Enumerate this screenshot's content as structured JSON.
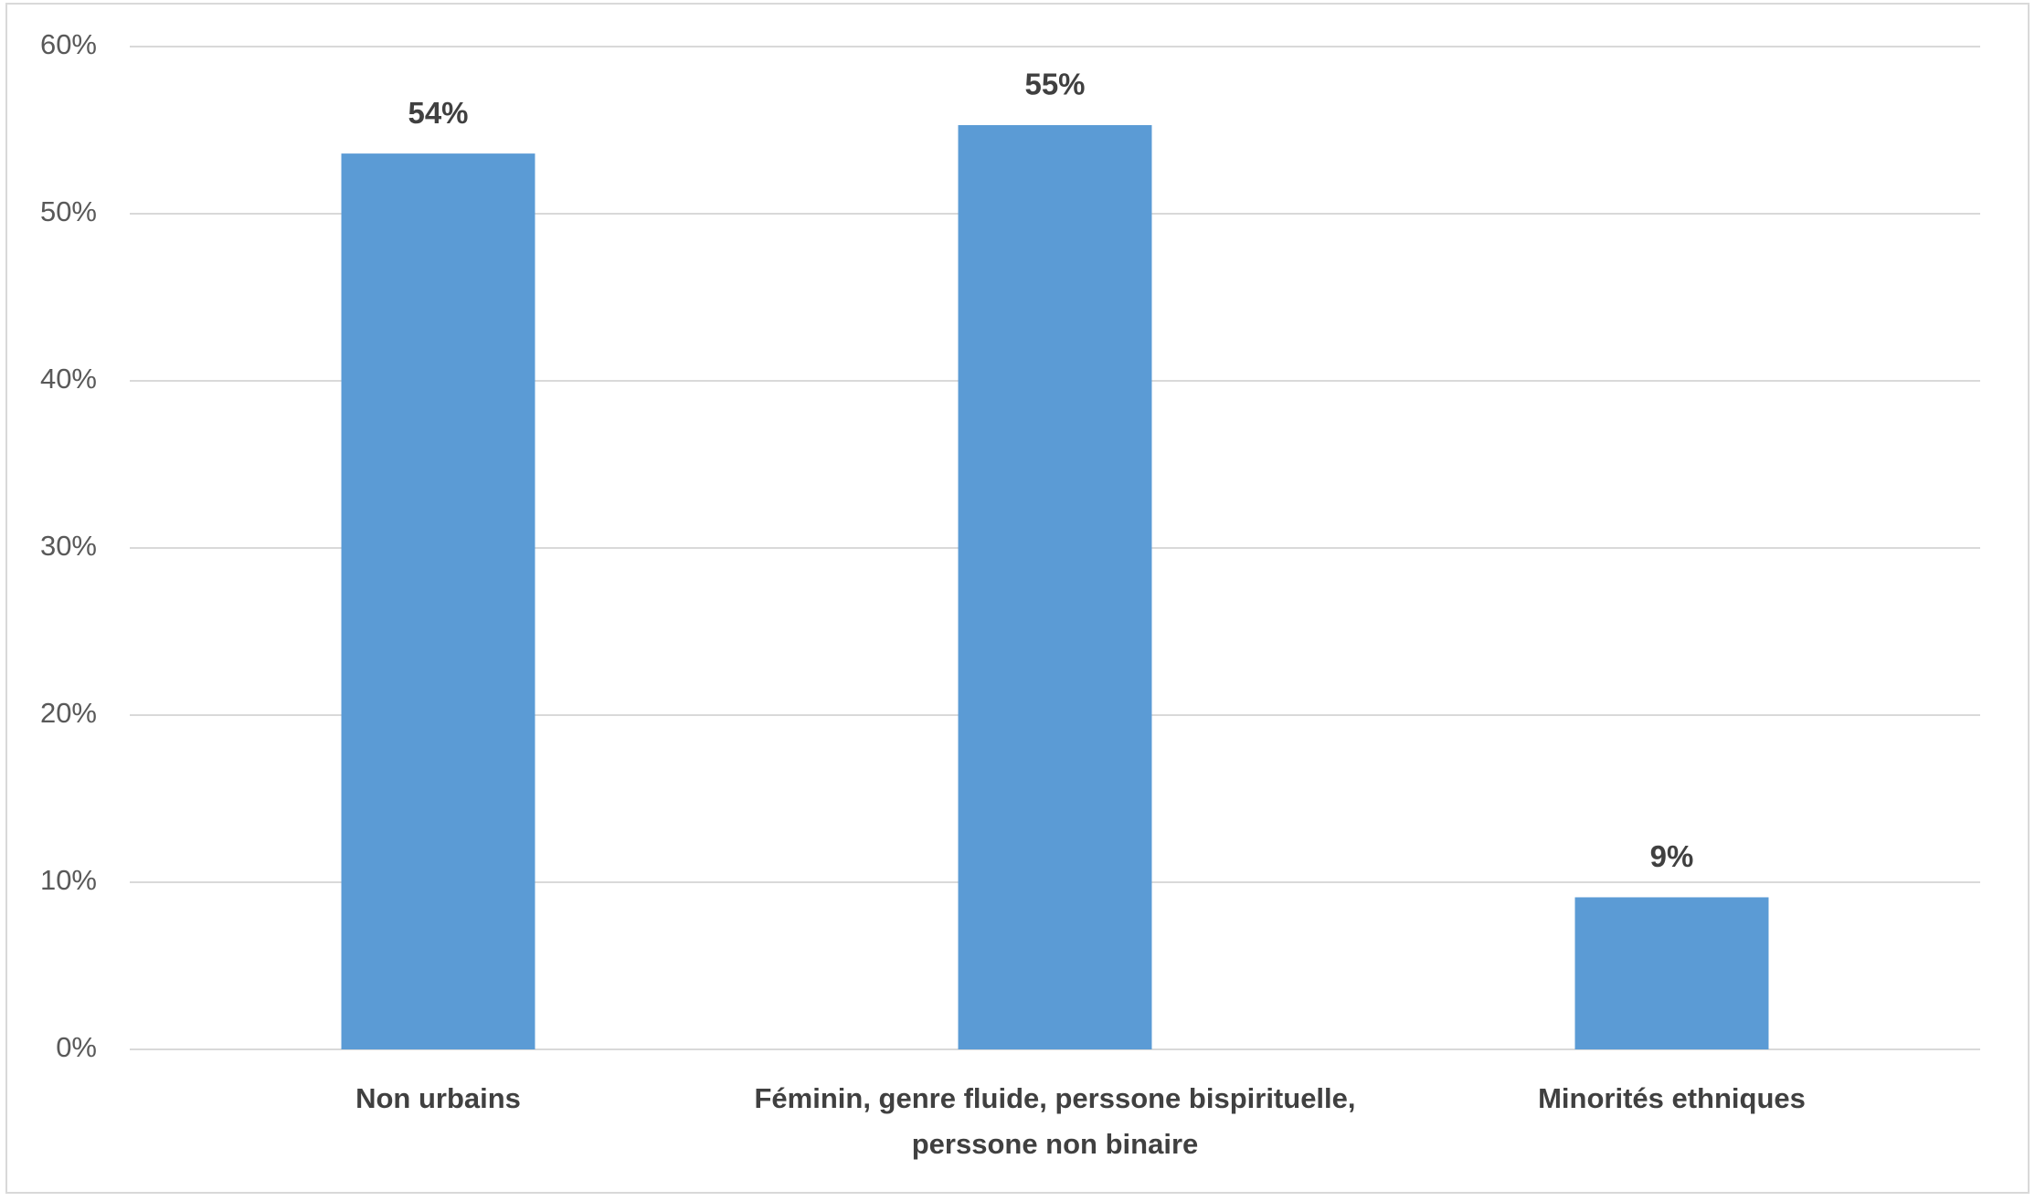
{
  "chart_data": {
    "type": "bar",
    "categories": [
      "Non urbains",
      "Féminin, genre fluide, perssone bispirituelle, perssone non binaire",
      "Minorités ethniques"
    ],
    "values": [
      53.6,
      55.3,
      9.1
    ],
    "value_labels": [
      "54%",
      "55%",
      "9%"
    ],
    "color": "#5b9bd5",
    "ylim": [
      0,
      60
    ],
    "yticks": [
      {
        "value": 0,
        "label": "0%"
      },
      {
        "value": 10,
        "label": "10%"
      },
      {
        "value": 20,
        "label": "20%"
      },
      {
        "value": 30,
        "label": "30%"
      },
      {
        "value": 40,
        "label": "40%"
      },
      {
        "value": 50,
        "label": "50%"
      },
      {
        "value": 60,
        "label": "60%"
      }
    ],
    "grid": true
  }
}
